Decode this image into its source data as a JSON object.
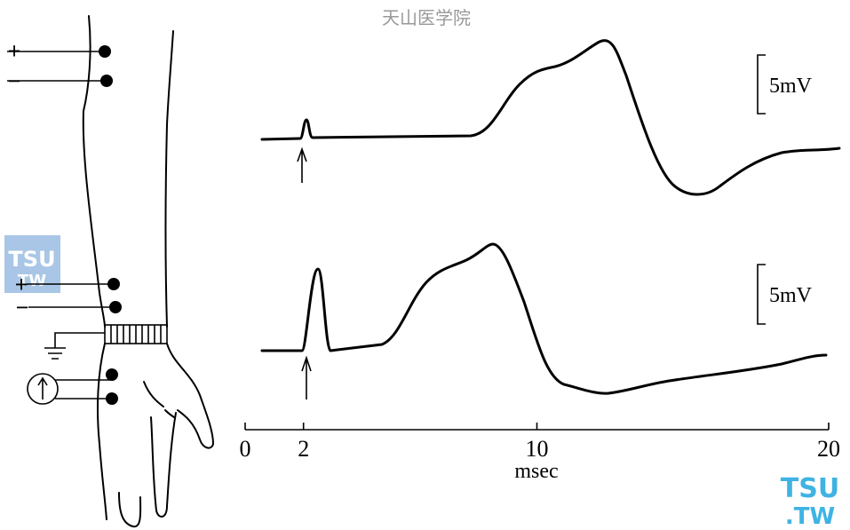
{
  "watermark": "天山医学院",
  "side_logo": {
    "line1": "TSU",
    "line2": "TW"
  },
  "corner_logo": {
    "line1": "TSU",
    "line2": ".TW"
  },
  "electrodes": {
    "upper": {
      "plus": "+",
      "minus": "−"
    },
    "lower": {
      "plus": "+",
      "minus": "−"
    }
  },
  "traces": [
    {
      "scale": "5mV"
    },
    {
      "scale": "5mV"
    }
  ],
  "axis": {
    "label": "msec",
    "xlim": [
      0,
      20
    ],
    "ticks": [
      0,
      2,
      10,
      20
    ]
  }
}
